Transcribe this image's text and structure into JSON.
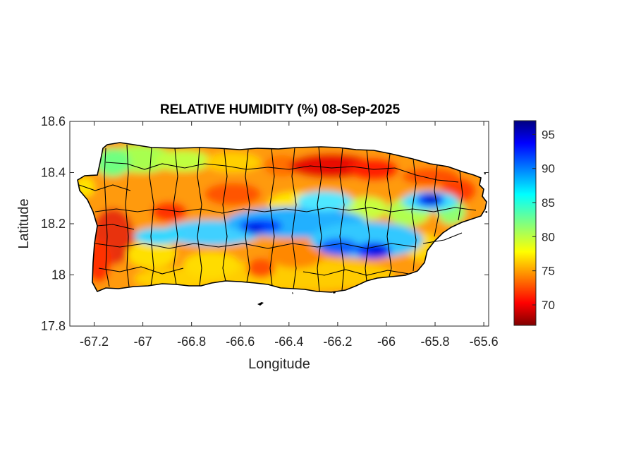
{
  "map": {
    "title": "RELATIVE HUMIDITY (%) 08-Sep-2025",
    "xlabel": "Longitude",
    "ylabel": "Latitude",
    "xlim": [
      -67.3,
      -65.58
    ],
    "ylim": [
      17.8,
      18.6
    ],
    "xticks": [
      {
        "value": -67.2,
        "label": "-67.2"
      },
      {
        "value": -67.0,
        "label": "-67"
      },
      {
        "value": -66.8,
        "label": "-66.8"
      },
      {
        "value": -66.6,
        "label": "-66.6"
      },
      {
        "value": -66.4,
        "label": "-66.4"
      },
      {
        "value": -66.2,
        "label": "-66.2"
      },
      {
        "value": -66.0,
        "label": "-66"
      },
      {
        "value": -65.8,
        "label": "-65.8"
      },
      {
        "value": -65.6,
        "label": "-65.6"
      }
    ],
    "yticks": [
      {
        "value": 17.8,
        "label": "17.8"
      },
      {
        "value": 18.0,
        "label": "18"
      },
      {
        "value": 18.2,
        "label": "18.2"
      },
      {
        "value": 18.4,
        "label": "18.4"
      },
      {
        "value": 18.6,
        "label": "18.6"
      }
    ],
    "colorbar": {
      "colormap": "jet",
      "clim": [
        67,
        97
      ],
      "ticks": [
        {
          "value": 70,
          "label": "70"
        },
        {
          "value": 75,
          "label": "75"
        },
        {
          "value": 80,
          "label": "80"
        },
        {
          "value": 85,
          "label": "85"
        },
        {
          "value": 90,
          "label": "90"
        },
        {
          "value": 95,
          "label": "95"
        }
      ]
    },
    "colors": {
      "border": "#000000",
      "axes": "#262626",
      "background": "#ffffff"
    }
  }
}
